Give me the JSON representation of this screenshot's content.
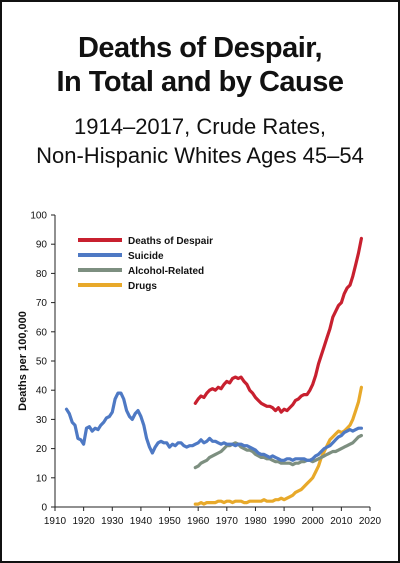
{
  "header": {
    "title_line1": "Deaths of Despair,",
    "title_line2": "In Total and by Cause",
    "subtitle_line1": "1914–2017, Crude Rates,",
    "subtitle_line2": "Non-Hispanic Whites Ages 45–54"
  },
  "chart_data": {
    "type": "line",
    "title": "Deaths of Despair, In Total and by Cause",
    "subtitle": "1914–2017, Crude Rates, Non-Hispanic Whites Ages 45–54",
    "xlabel": "",
    "ylabel": "Deaths per 100,000",
    "xlim": [
      1910,
      2020
    ],
    "ylim": [
      0,
      100
    ],
    "xticks": [
      1910,
      1920,
      1930,
      1940,
      1950,
      1960,
      1970,
      1980,
      1990,
      2000,
      2010,
      2020
    ],
    "yticks": [
      0,
      10,
      20,
      30,
      40,
      50,
      60,
      70,
      80,
      90,
      100
    ],
    "grid": false,
    "legend_position": "top-left",
    "series": [
      {
        "name": "Deaths of Despair",
        "color": "#c8202f",
        "x": [
          1959,
          1960,
          1961,
          1962,
          1963,
          1964,
          1965,
          1966,
          1967,
          1968,
          1969,
          1970,
          1971,
          1972,
          1973,
          1974,
          1975,
          1976,
          1977,
          1978,
          1979,
          1980,
          1981,
          1982,
          1983,
          1984,
          1985,
          1986,
          1987,
          1988,
          1989,
          1990,
          1991,
          1992,
          1993,
          1994,
          1995,
          1996,
          1997,
          1998,
          1999,
          2000,
          2001,
          2002,
          2003,
          2004,
          2005,
          2006,
          2007,
          2008,
          2009,
          2010,
          2011,
          2012,
          2013,
          2014,
          2015,
          2016,
          2017
        ],
        "values": [
          35.5,
          37,
          38,
          37.5,
          39,
          40,
          40.5,
          40,
          41,
          40.5,
          42,
          43,
          42.5,
          44,
          44.5,
          44,
          44.5,
          43,
          42,
          40,
          39,
          37.5,
          36.5,
          35.5,
          35,
          34.5,
          34.5,
          34,
          33,
          34,
          32.5,
          33.5,
          33,
          34,
          35,
          36.5,
          37,
          38,
          38.5,
          38.5,
          40,
          42,
          45,
          49,
          52,
          55,
          58,
          61,
          65,
          67,
          69,
          70,
          73,
          75,
          76,
          79,
          83,
          87,
          92
        ]
      },
      {
        "name": "Suicide",
        "color": "#4e79c4",
        "x": [
          1914,
          1915,
          1916,
          1917,
          1918,
          1919,
          1920,
          1921,
          1922,
          1923,
          1924,
          1925,
          1926,
          1927,
          1928,
          1929,
          1930,
          1931,
          1932,
          1933,
          1934,
          1935,
          1936,
          1937,
          1938,
          1939,
          1940,
          1941,
          1942,
          1943,
          1944,
          1945,
          1946,
          1947,
          1948,
          1949,
          1950,
          1951,
          1952,
          1953,
          1954,
          1955,
          1956,
          1957,
          1958,
          1959,
          1960,
          1961,
          1962,
          1963,
          1964,
          1965,
          1966,
          1967,
          1968,
          1969,
          1970,
          1971,
          1972,
          1973,
          1974,
          1975,
          1976,
          1977,
          1978,
          1979,
          1980,
          1981,
          1982,
          1983,
          1984,
          1985,
          1986,
          1987,
          1988,
          1989,
          1990,
          1991,
          1992,
          1993,
          1994,
          1995,
          1996,
          1997,
          1998,
          1999,
          2000,
          2001,
          2002,
          2003,
          2004,
          2005,
          2006,
          2007,
          2008,
          2009,
          2010,
          2011,
          2012,
          2013,
          2014,
          2015,
          2016,
          2017
        ],
        "values": [
          33.5,
          32,
          29,
          28,
          23.5,
          23,
          21.5,
          27,
          27.5,
          26,
          27,
          26.5,
          28,
          29,
          30.5,
          31,
          32.5,
          37,
          39,
          39,
          37,
          33,
          31,
          30,
          32,
          33,
          31,
          28,
          23.5,
          20.5,
          18.5,
          20.5,
          22,
          22.5,
          22,
          22,
          20.5,
          21.5,
          21,
          22,
          22,
          21,
          20.5,
          21,
          21,
          21.5,
          22,
          23,
          22,
          22.5,
          23.5,
          22.5,
          22.5,
          22,
          21.5,
          22,
          21.5,
          21.5,
          21.5,
          21,
          21.5,
          21.5,
          21,
          21,
          20.5,
          20,
          19.5,
          18.5,
          18,
          18,
          17.5,
          17,
          17.5,
          17,
          16.5,
          16,
          16,
          16.5,
          16.5,
          16,
          16.5,
          16.5,
          16.5,
          16.5,
          16,
          16,
          16.5,
          17.5,
          18,
          19,
          20,
          20.5,
          21,
          22,
          23,
          24,
          24.5,
          25.5,
          26,
          26.5,
          26,
          26.5,
          27,
          27
        ]
      },
      {
        "name": "Alcohol-Related",
        "color": "#7d8f80",
        "x": [
          1959,
          1960,
          1961,
          1962,
          1963,
          1964,
          1965,
          1966,
          1967,
          1968,
          1969,
          1970,
          1971,
          1972,
          1973,
          1974,
          1975,
          1976,
          1977,
          1978,
          1979,
          1980,
          1981,
          1982,
          1983,
          1984,
          1985,
          1986,
          1987,
          1988,
          1989,
          1990,
          1991,
          1992,
          1993,
          1994,
          1995,
          1996,
          1997,
          1998,
          1999,
          2000,
          2001,
          2002,
          2003,
          2004,
          2005,
          2006,
          2007,
          2008,
          2009,
          2010,
          2011,
          2012,
          2013,
          2014,
          2015,
          2016,
          2017
        ],
        "values": [
          13.5,
          14,
          15,
          15.5,
          16,
          17,
          17.5,
          18,
          18.5,
          19,
          20,
          21,
          21,
          21.5,
          22,
          21.5,
          20.5,
          20,
          19.5,
          19.5,
          19,
          18,
          17.5,
          17,
          17,
          16.5,
          16.5,
          16,
          15.5,
          15.5,
          15,
          15,
          15,
          15,
          14.5,
          15,
          15,
          15.5,
          15.5,
          16,
          16,
          15.5,
          16,
          16.5,
          17,
          17.5,
          18,
          18.5,
          19,
          19,
          19.5,
          20,
          20.5,
          21,
          21.5,
          22,
          23,
          24,
          24.5
        ]
      },
      {
        "name": "Drugs",
        "color": "#e8a92a",
        "x": [
          1959,
          1960,
          1961,
          1962,
          1963,
          1964,
          1965,
          1966,
          1967,
          1968,
          1969,
          1970,
          1971,
          1972,
          1973,
          1974,
          1975,
          1976,
          1977,
          1978,
          1979,
          1980,
          1981,
          1982,
          1983,
          1984,
          1985,
          1986,
          1987,
          1988,
          1989,
          1990,
          1991,
          1992,
          1993,
          1994,
          1995,
          1996,
          1997,
          1998,
          1999,
          2000,
          2001,
          2002,
          2003,
          2004,
          2005,
          2006,
          2007,
          2008,
          2009,
          2010,
          2011,
          2012,
          2013,
          2014,
          2015,
          2016,
          2017
        ],
        "values": [
          1,
          1,
          1.5,
          1,
          1.5,
          1.5,
          1.5,
          1.5,
          2,
          2,
          1.5,
          2,
          2,
          1.5,
          2,
          2,
          2,
          1.5,
          1.5,
          2,
          2,
          2,
          2,
          2,
          2.5,
          2,
          2,
          2,
          2.5,
          2.5,
          3,
          2.5,
          3,
          3.5,
          4,
          5,
          5.5,
          6,
          7,
          8,
          9,
          10,
          12,
          14,
          17,
          19,
          21,
          23,
          24,
          25,
          26,
          25.5,
          26,
          27,
          28,
          30,
          33,
          36,
          41
        ]
      }
    ]
  }
}
